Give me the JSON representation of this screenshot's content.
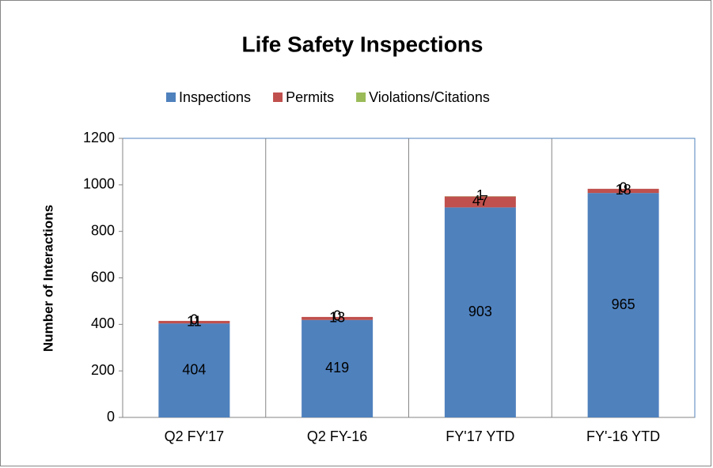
{
  "chart_data": {
    "type": "stacked_bar",
    "title": "Life Safety Inspections",
    "y_label": "Number of Interactions",
    "categories": [
      "Q2 FY'17",
      "Q2 FY-16",
      "FY'17 YTD",
      "FY'-16 YTD"
    ],
    "series": [
      {
        "name": "Inspections",
        "color": "#4f81bd",
        "values": [
          404,
          419,
          903,
          965
        ]
      },
      {
        "name": "Permits",
        "color": "#c0504d",
        "values": [
          11,
          13,
          47,
          18
        ]
      },
      {
        "name": "Violations/Citations",
        "color": "#9bbb59",
        "values": [
          0,
          0,
          1,
          0
        ]
      }
    ],
    "ylim": [
      0,
      1200
    ],
    "yticks": [
      0,
      200,
      400,
      600,
      800,
      1000,
      1200
    ],
    "grid": false,
    "legend": "top"
  }
}
